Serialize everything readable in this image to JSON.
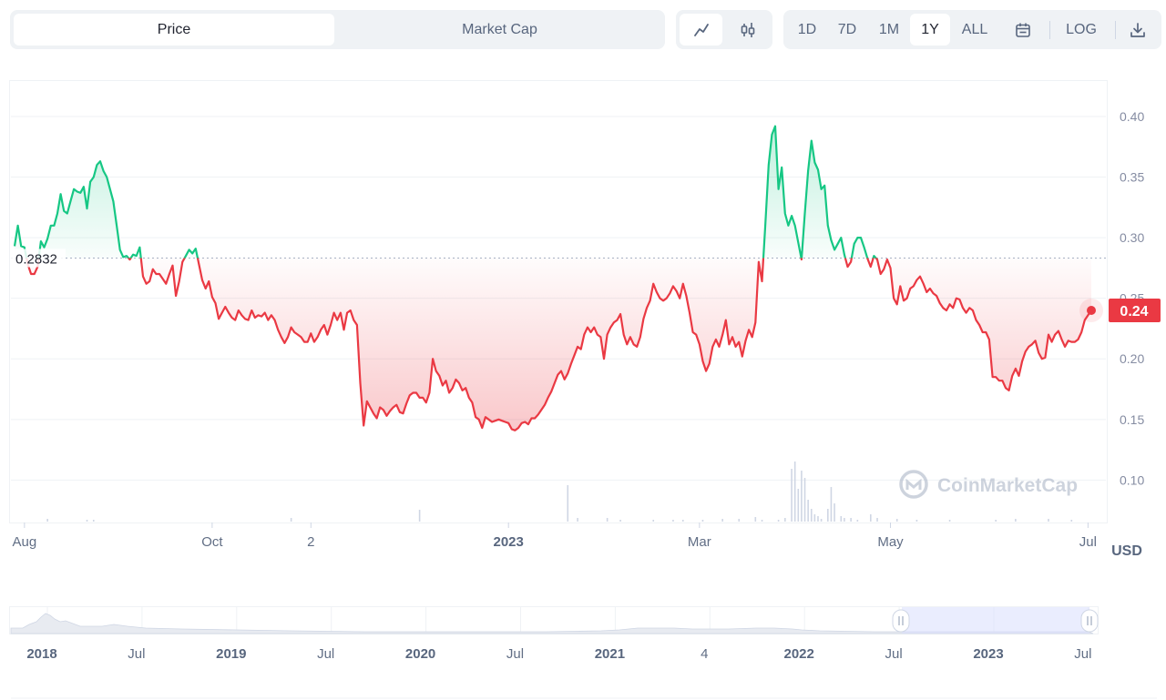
{
  "tabs": {
    "price": "Price",
    "market_cap": "Market Cap"
  },
  "chart_style": {
    "line_icon": "line-chart-icon",
    "candle_icon": "candlestick-icon"
  },
  "ranges": [
    "1D",
    "7D",
    "1M",
    "1Y",
    "ALL"
  ],
  "active_range": "1Y",
  "calendar_icon": "calendar-icon",
  "log_label": "LOG",
  "download_icon": "download-icon",
  "currency": "USD",
  "watermark": "CoinMarketCap",
  "colors": {
    "up": "#16c784",
    "down": "#ea3943",
    "grid": "#eff2f5"
  },
  "chart_data": {
    "type": "line",
    "title": "",
    "xlabel": "",
    "ylabel": "USD",
    "ylim": [
      0.065,
      0.43
    ],
    "yticks": [
      "0.10",
      "0.15",
      "0.20",
      "0.25",
      "0.30",
      "0.35",
      "0.40"
    ],
    "x_ticks": [
      {
        "label": "Aug",
        "i": 3,
        "bold": false
      },
      {
        "label": "Oct",
        "i": 60,
        "bold": false
      },
      {
        "label": "2",
        "i": 90,
        "bold": false
      },
      {
        "label": "2023",
        "i": 150,
        "bold": true
      },
      {
        "label": "Mar",
        "i": 208,
        "bold": false
      },
      {
        "label": "May",
        "i": 266,
        "bold": false
      },
      {
        "label": "Jul",
        "i": 326,
        "bold": false
      }
    ],
    "baseline_label": "0.2832",
    "baseline": 0.2832,
    "current_label": "0.24",
    "legend": "none",
    "grid": true,
    "series": [
      {
        "values": [
          0.293,
          0.31,
          0.293,
          0.292,
          0.278,
          0.27,
          0.27,
          0.276,
          0.297,
          0.292,
          0.299,
          0.31,
          0.31,
          0.32,
          0.336,
          0.322,
          0.32,
          0.33,
          0.34,
          0.338,
          0.337,
          0.342,
          0.324,
          0.346,
          0.35,
          0.36,
          0.363,
          0.355,
          0.35,
          0.34,
          0.33,
          0.31,
          0.29,
          0.284,
          0.285,
          0.282,
          0.286,
          0.285,
          0.292,
          0.268,
          0.262,
          0.264,
          0.274,
          0.27,
          0.27,
          0.266,
          0.262,
          0.27,
          0.277,
          0.252,
          0.264,
          0.28,
          0.285,
          0.29,
          0.287,
          0.291,
          0.278,
          0.265,
          0.258,
          0.264,
          0.251,
          0.246,
          0.233,
          0.238,
          0.243,
          0.238,
          0.234,
          0.232,
          0.24,
          0.236,
          0.233,
          0.232,
          0.24,
          0.234,
          0.236,
          0.235,
          0.238,
          0.232,
          0.236,
          0.232,
          0.224,
          0.218,
          0.213,
          0.218,
          0.226,
          0.222,
          0.22,
          0.218,
          0.214,
          0.214,
          0.221,
          0.214,
          0.218,
          0.224,
          0.228,
          0.22,
          0.228,
          0.238,
          0.232,
          0.238,
          0.224,
          0.238,
          0.24,
          0.232,
          0.228,
          0.18,
          0.145,
          0.165,
          0.16,
          0.155,
          0.151,
          0.16,
          0.158,
          0.153,
          0.157,
          0.16,
          0.162,
          0.156,
          0.155,
          0.163,
          0.17,
          0.172,
          0.172,
          0.168,
          0.168,
          0.164,
          0.172,
          0.2,
          0.19,
          0.186,
          0.178,
          0.182,
          0.172,
          0.176,
          0.183,
          0.18,
          0.174,
          0.176,
          0.168,
          0.164,
          0.152,
          0.15,
          0.143,
          0.152,
          0.15,
          0.148,
          0.149,
          0.15,
          0.149,
          0.148,
          0.147,
          0.142,
          0.141,
          0.143,
          0.147,
          0.148,
          0.146,
          0.151,
          0.151,
          0.154,
          0.158,
          0.162,
          0.168,
          0.173,
          0.18,
          0.187,
          0.19,
          0.183,
          0.188,
          0.196,
          0.203,
          0.21,
          0.208,
          0.22,
          0.226,
          0.222,
          0.226,
          0.22,
          0.218,
          0.2,
          0.22,
          0.226,
          0.23,
          0.232,
          0.237,
          0.22,
          0.212,
          0.218,
          0.212,
          0.21,
          0.218,
          0.233,
          0.242,
          0.248,
          0.262,
          0.255,
          0.25,
          0.248,
          0.25,
          0.254,
          0.26,
          0.256,
          0.25,
          0.262,
          0.252,
          0.238,
          0.222,
          0.22,
          0.212,
          0.198,
          0.19,
          0.196,
          0.21,
          0.216,
          0.21,
          0.22,
          0.232,
          0.212,
          0.218,
          0.21,
          0.214,
          0.202,
          0.215,
          0.224,
          0.218,
          0.23,
          0.28,
          0.264,
          0.31,
          0.36,
          0.385,
          0.392,
          0.34,
          0.358,
          0.32,
          0.31,
          0.318,
          0.31,
          0.296,
          0.282,
          0.32,
          0.355,
          0.38,
          0.362,
          0.356,
          0.34,
          0.343,
          0.31,
          0.298,
          0.29,
          0.295,
          0.3,
          0.286,
          0.276,
          0.28,
          0.295,
          0.3,
          0.3,
          0.292,
          0.283,
          0.276,
          0.285,
          0.282,
          0.27,
          0.274,
          0.282,
          0.275,
          0.25,
          0.245,
          0.26,
          0.248,
          0.25,
          0.258,
          0.26,
          0.265,
          0.268,
          0.262,
          0.255,
          0.258,
          0.254,
          0.252,
          0.246,
          0.242,
          0.24,
          0.245,
          0.242,
          0.25,
          0.249,
          0.242,
          0.238,
          0.242,
          0.24,
          0.232,
          0.228,
          0.222,
          0.222,
          0.216,
          0.185,
          0.185,
          0.182,
          0.182,
          0.176,
          0.174,
          0.186,
          0.192,
          0.186,
          0.198,
          0.206,
          0.21,
          0.212,
          0.215,
          0.205,
          0.2,
          0.201,
          0.22,
          0.214,
          0.22,
          0.223,
          0.216,
          0.21,
          0.215,
          0.214,
          0.214,
          0.216,
          0.222,
          0.232,
          0.236,
          0.24
        ]
      }
    ],
    "volume": {
      "bars": [
        [
          10,
          3
        ],
        [
          22,
          2
        ],
        [
          24,
          2
        ],
        [
          84,
          4
        ],
        [
          123,
          13
        ],
        [
          168,
          40
        ],
        [
          171,
          4
        ],
        [
          180,
          4
        ],
        [
          184,
          2
        ],
        [
          194,
          2
        ],
        [
          200,
          2
        ],
        [
          203,
          2
        ],
        [
          209,
          2
        ],
        [
          215,
          3
        ],
        [
          220,
          3
        ],
        [
          225,
          5
        ],
        [
          227,
          2
        ],
        [
          232,
          2
        ],
        [
          234,
          4
        ],
        [
          236,
          58
        ],
        [
          237,
          66
        ],
        [
          238,
          36
        ],
        [
          239,
          56
        ],
        [
          240,
          48
        ],
        [
          241,
          24
        ],
        [
          242,
          14
        ],
        [
          243,
          8
        ],
        [
          244,
          6
        ],
        [
          245,
          3
        ],
        [
          247,
          14
        ],
        [
          248,
          38
        ],
        [
          249,
          20
        ],
        [
          251,
          6
        ],
        [
          252,
          4
        ],
        [
          254,
          4
        ],
        [
          256,
          2
        ],
        [
          260,
          8
        ],
        [
          262,
          4
        ],
        [
          268,
          3
        ],
        [
          274,
          2
        ],
        [
          284,
          2
        ],
        [
          298,
          2
        ],
        [
          304,
          3
        ],
        [
          314,
          3
        ],
        [
          321,
          2
        ]
      ]
    }
  },
  "navigator": {
    "labels": [
      {
        "label": "2018",
        "bold": true
      },
      {
        "label": "Jul",
        "bold": false
      },
      {
        "label": "2019",
        "bold": true
      },
      {
        "label": "Jul",
        "bold": false
      },
      {
        "label": "2020",
        "bold": true
      },
      {
        "label": "Jul",
        "bold": false
      },
      {
        "label": "2021",
        "bold": true
      },
      {
        "label": "4",
        "bold": false
      },
      {
        "label": "2022",
        "bold": true
      },
      {
        "label": "Jul",
        "bold": false
      },
      {
        "label": "2023",
        "bold": true
      },
      {
        "label": "Jul",
        "bold": false
      }
    ]
  }
}
